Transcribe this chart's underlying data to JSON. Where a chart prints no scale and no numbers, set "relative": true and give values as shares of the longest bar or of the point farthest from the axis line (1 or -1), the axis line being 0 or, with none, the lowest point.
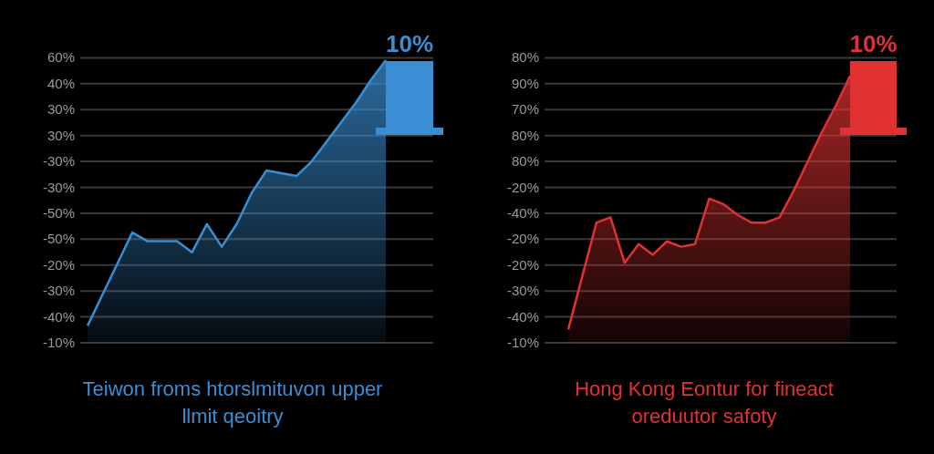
{
  "chart_data": [
    {
      "type": "area",
      "relative": true,
      "xlabel": "Teiwon  froms htorslmituvon upper llmit qeoitry",
      "annotations": [
        "10%",
        "60%",
        "40%",
        "30%",
        "30%",
        "-30%",
        "-30%",
        "-50%",
        "-50%",
        "-20%",
        "-30%",
        "-40%",
        "-10%"
      ],
      "categories": [
        null,
        null,
        null,
        null,
        null,
        null,
        null,
        null,
        null,
        null,
        null,
        null,
        null,
        null,
        null,
        null,
        null,
        null,
        null,
        null,
        null
      ],
      "series": [
        {
          "color": "#3a8fd4",
          "values": [
            0.06,
            0.17,
            0.28,
            0.39,
            0.36,
            0.36,
            0.36,
            0.32,
            0.42,
            0.34,
            0.42,
            0.53,
            0.61,
            0.6,
            0.59,
            0.64,
            0.71,
            0.78,
            0.85,
            0.93,
            1
          ]
        }
      ],
      "grid": "y"
    },
    {
      "type": "area",
      "relative": true,
      "xlabel": "Hong Kong  Eontur for fineact oreduutor safoty",
      "annotations": [
        "10%",
        "80%",
        "90%",
        "70%",
        "80%",
        "80%",
        "-20%",
        "-40%",
        "-20%",
        "-20%",
        "-30%",
        "-40%",
        "-10%"
      ],
      "categories": [
        null,
        null,
        null,
        null,
        null,
        null,
        null,
        null,
        null,
        null,
        null,
        null,
        null,
        null,
        null,
        null,
        null,
        null,
        null,
        null,
        null
      ],
      "series": [
        {
          "color": "#e03232",
          "values": [
            0.05,
            0.25,
            0.45,
            0.47,
            0.3,
            0.37,
            0.33,
            0.38,
            0.36,
            0.37,
            0.54,
            0.52,
            0.48,
            0.45,
            0.45,
            0.47,
            0.57,
            0.68,
            0.79,
            0.89,
            1
          ]
        }
      ],
      "grid": "y"
    }
  ]
}
